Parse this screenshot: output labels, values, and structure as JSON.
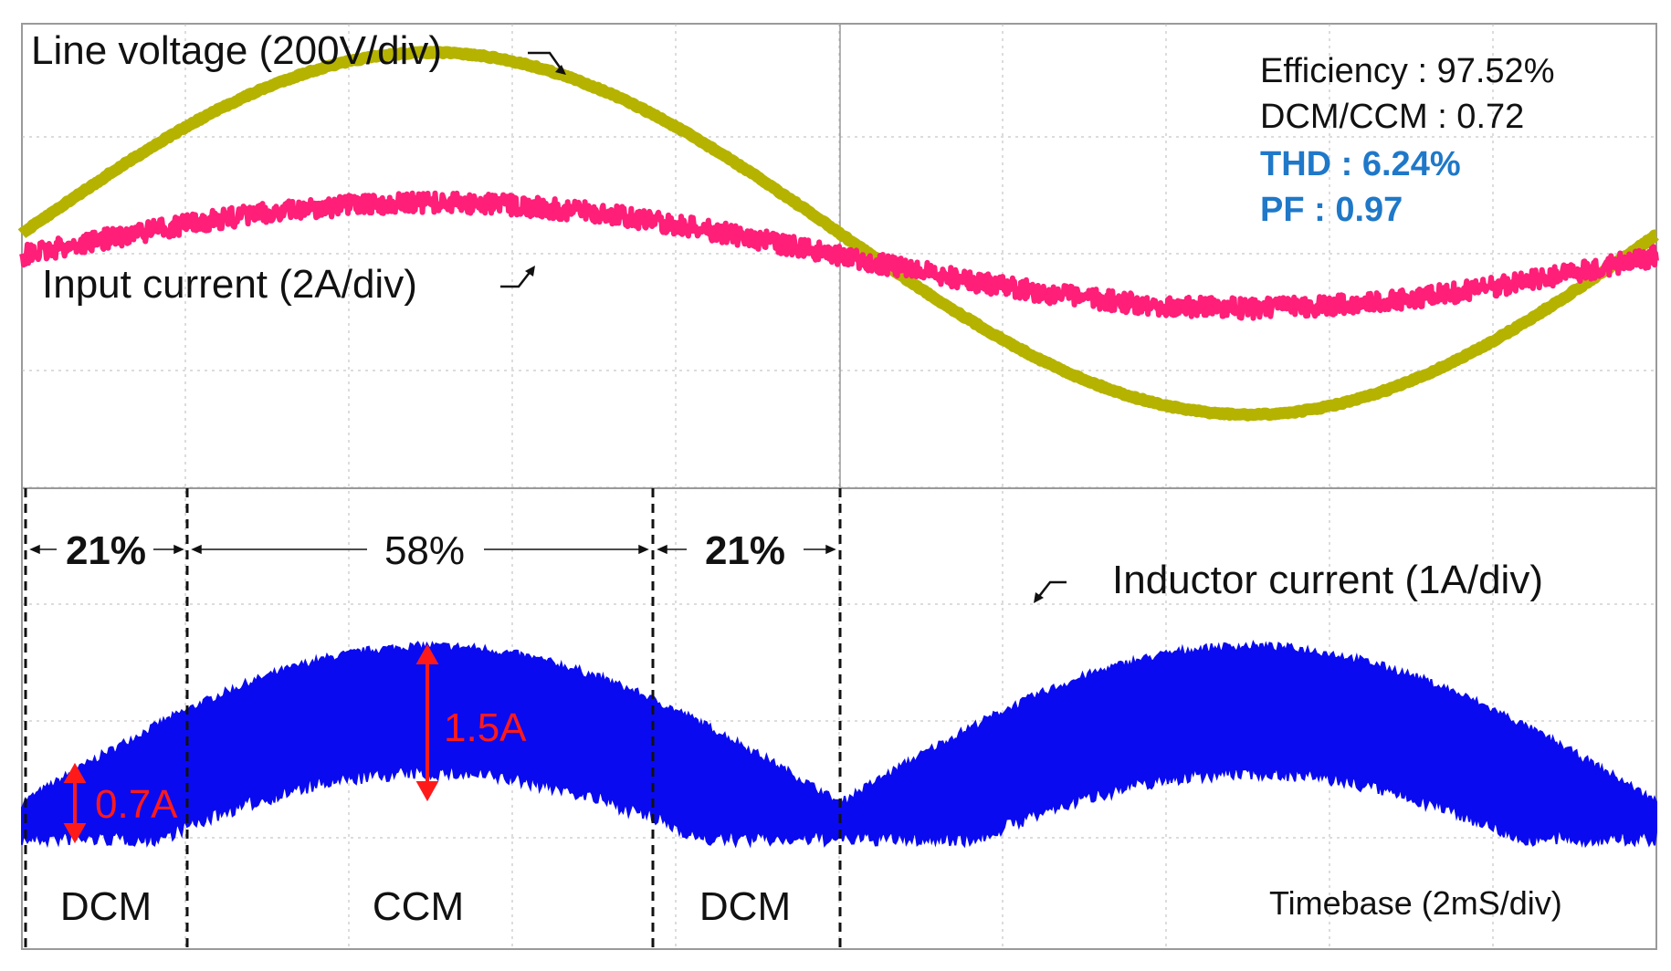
{
  "colors": {
    "line_voltage": "#b5b300",
    "input_current": "#ff1e78",
    "inductor_current": "#0a0af0",
    "annotation_red": "#ff1a1a",
    "stat_blue": "#1f78c8",
    "grid": "#b8b8b8"
  },
  "chart_data": {
    "type": "line",
    "title": "",
    "xlabel": "Timebase (2mS/div)",
    "ylabel": "",
    "grid": true,
    "x_divisions": 10,
    "period_divisions": 10,
    "series": [
      {
        "name": "Line voltage (200V/div)",
        "panel": "top",
        "amplitude_div": 1.55,
        "offset_div": 0.15,
        "phase": "sin"
      },
      {
        "name": "Input current (2A/div)",
        "panel": "top",
        "amplitude_div": 0.45,
        "offset_div": 0.15,
        "phase": "sin"
      },
      {
        "name": "Inductor current (1A/div)",
        "panel": "bottom",
        "ripple_min_A": 0.7,
        "ripple_peak_A": 1.5,
        "envelope": "abs-sin"
      }
    ],
    "labels": {
      "line_voltage": "Line voltage (200V/div)",
      "input_current": "Input current (2A/div)",
      "inductor_current": "Inductor current (1A/div)",
      "timebase": "Timebase (2mS/div)"
    },
    "stats": {
      "efficiency": "Efficiency : 97.52%",
      "dcm_ccm": "DCM/CCM : 0.72",
      "thd": "THD : 6.24%",
      "pf": "PF : 0.97"
    },
    "regions": [
      {
        "mode": "DCM",
        "share": "21%"
      },
      {
        "mode": "CCM",
        "share": "58%"
      },
      {
        "mode": "DCM",
        "share": "21%"
      }
    ],
    "annotations": {
      "dcm_ripple": "0.7A",
      "ccm_ripple": "1.5A"
    }
  }
}
